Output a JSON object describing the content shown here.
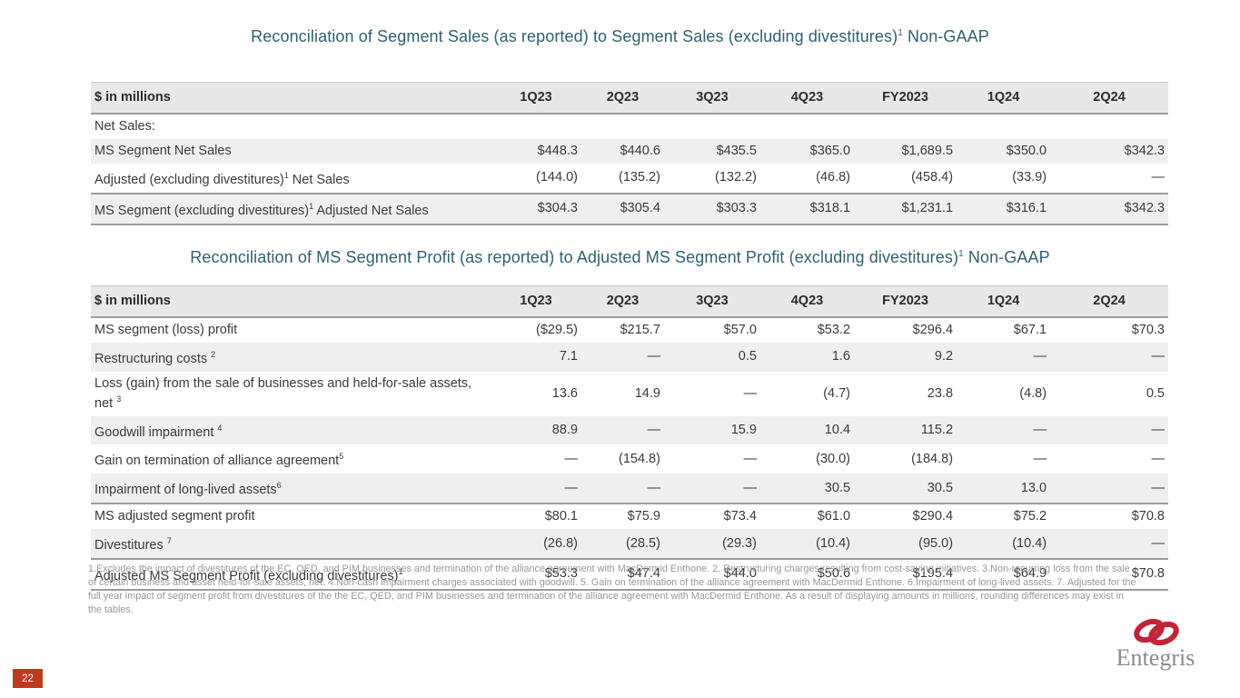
{
  "slide": {
    "page_number": "22"
  },
  "colors": {
    "title_teal": "#2E616E",
    "row_stripe": "#EFEFEF",
    "header_bg": "#E8E8E8",
    "rule_dark": "#9C9C9C",
    "badge_red": "#BE3A1E",
    "brand_red": "#C22438",
    "logo_gray": "#8A8A8A",
    "footnote_gray": "#979797"
  },
  "tables": [
    {
      "title": {
        "text": "Reconciliation of Segment Sales (as reported) to Segment Sales (excluding divestitures)",
        "sup": "1",
        "suffix": " Non-GAAP"
      },
      "columns": [
        "$ in millions",
        "1Q23",
        "2Q23",
        "3Q23",
        "4Q23",
        "FY2023",
        "1Q24",
        "2Q24"
      ],
      "section_label": "Net Sales:",
      "rows": [
        {
          "pre": "MS Segment Net Sales",
          "sup": "",
          "post": "",
          "values": [
            "$448.3",
            "$440.6",
            "$435.5",
            "$365.0",
            "$1,689.5",
            "$350.0",
            "$342.3"
          ],
          "shade": true,
          "rule_above": false,
          "rule_below": false
        },
        {
          "pre": "Adjusted (excluding divestitures)",
          "sup": "1",
          "post": " Net Sales",
          "values": [
            "(144.0)",
            "(135.2)",
            "(132.2)",
            "(46.8)",
            "(458.4)",
            "(33.9)",
            "—"
          ],
          "shade": false,
          "rule_above": false,
          "rule_below": false
        },
        {
          "pre": "MS Segment (excluding divestitures)",
          "sup": "1",
          "post": " Adjusted Net Sales",
          "values": [
            "$304.3",
            "$305.4",
            "$303.3",
            "$318.1",
            "$1,231.1",
            "$316.1",
            "$342.3"
          ],
          "shade": true,
          "rule_above": true,
          "rule_below": true
        }
      ]
    },
    {
      "title": {
        "text": "Reconciliation of MS Segment Profit (as reported) to Adjusted MS Segment Profit (excluding divestitures)",
        "sup": "1",
        "suffix": " Non-GAAP"
      },
      "columns": [
        "$ in millions",
        "1Q23",
        "2Q23",
        "3Q23",
        "4Q23",
        "FY2023",
        "1Q24",
        "2Q24"
      ],
      "section_label": "",
      "rows": [
        {
          "pre": "MS segment (loss) profit",
          "sup": "",
          "post": "",
          "values": [
            "($29.5)",
            "$215.7",
            "$57.0",
            "$53.2",
            "$296.4",
            "$67.1",
            "$70.3"
          ],
          "shade": false,
          "rule_above": false,
          "rule_below": false
        },
        {
          "pre": "Restructuring costs ",
          "sup": "2",
          "post": "",
          "values": [
            "7.1",
            "—",
            "0.5",
            "1.6",
            "9.2",
            "—",
            "—"
          ],
          "shade": true,
          "rule_above": false,
          "rule_below": false
        },
        {
          "pre": "Loss (gain) from the sale of businesses and held-for-sale assets, net ",
          "sup": "3",
          "post": "",
          "values": [
            "13.6",
            "14.9",
            "—",
            "(4.7)",
            "23.8",
            "(4.8)",
            "0.5"
          ],
          "shade": false,
          "rule_above": false,
          "rule_below": false
        },
        {
          "pre": "Goodwill impairment ",
          "sup": "4",
          "post": "",
          "values": [
            "88.9",
            "—",
            "15.9",
            "10.4",
            "115.2",
            "—",
            "—"
          ],
          "shade": true,
          "rule_above": false,
          "rule_below": false
        },
        {
          "pre": "Gain on termination of alliance agreement",
          "sup": "5",
          "post": "",
          "values": [
            "—",
            "(154.8)",
            "—",
            "(30.0)",
            "(184.8)",
            "—",
            "—"
          ],
          "shade": false,
          "rule_above": false,
          "rule_below": false
        },
        {
          "pre": "Impairment of long-lived assets",
          "sup": "6",
          "post": "",
          "values": [
            "—",
            "—",
            "—",
            "30.5",
            "30.5",
            "13.0",
            "—"
          ],
          "shade": true,
          "rule_above": false,
          "rule_below": false
        },
        {
          "pre": "MS adjusted segment profit",
          "sup": "",
          "post": "",
          "values": [
            "$80.1",
            "$75.9",
            "$73.4",
            "$61.0",
            "$290.4",
            "$75.2",
            "$70.8"
          ],
          "shade": false,
          "rule_above": true,
          "rule_below": false
        },
        {
          "pre": "Divestitures ",
          "sup": "7",
          "post": "",
          "values": [
            "(26.8)",
            "(28.5)",
            "(29.3)",
            "(10.4)",
            "(95.0)",
            "(10.4)",
            "—"
          ],
          "shade": true,
          "rule_above": false,
          "rule_below": false
        },
        {
          "pre": "Adjusted MS Segment Profit (excluding divestitures)",
          "sup": "1",
          "post": "",
          "values": [
            "$53.3",
            "$47.4",
            "$44.0",
            "$50.6",
            "$195.4",
            "$64.9",
            "$70.8"
          ],
          "shade": false,
          "rule_above": true,
          "rule_below": true
        }
      ]
    }
  ],
  "footnotes": {
    "text": "1.Excludes the impact of divestitures of the EC, QED, and PIM businesses and termination of the alliance agreement with MacDermid Enthone.  2. Restructuring charges resulting from cost-saving initiatives.  3.Non-recurring loss from the sale of certain business and asset held-for-sale assets, net.  4.Non-cash impairment charges associated with goodwill.  5. Gain on termination of the alliance agreement with MacDermid Enthone. 6.Impairment of long-lived assets. 7. Adjusted for the full year impact of segment profit from divestitures of the the EC, QED, and PIM businesses and termination of the alliance agreement with MacDermid Enthone.  As a result of displaying amounts in millions, rounding differences may exist in the tables."
  },
  "logo": {
    "wordmark": "Entegris",
    "mark": "interlocking-ovals-icon"
  }
}
